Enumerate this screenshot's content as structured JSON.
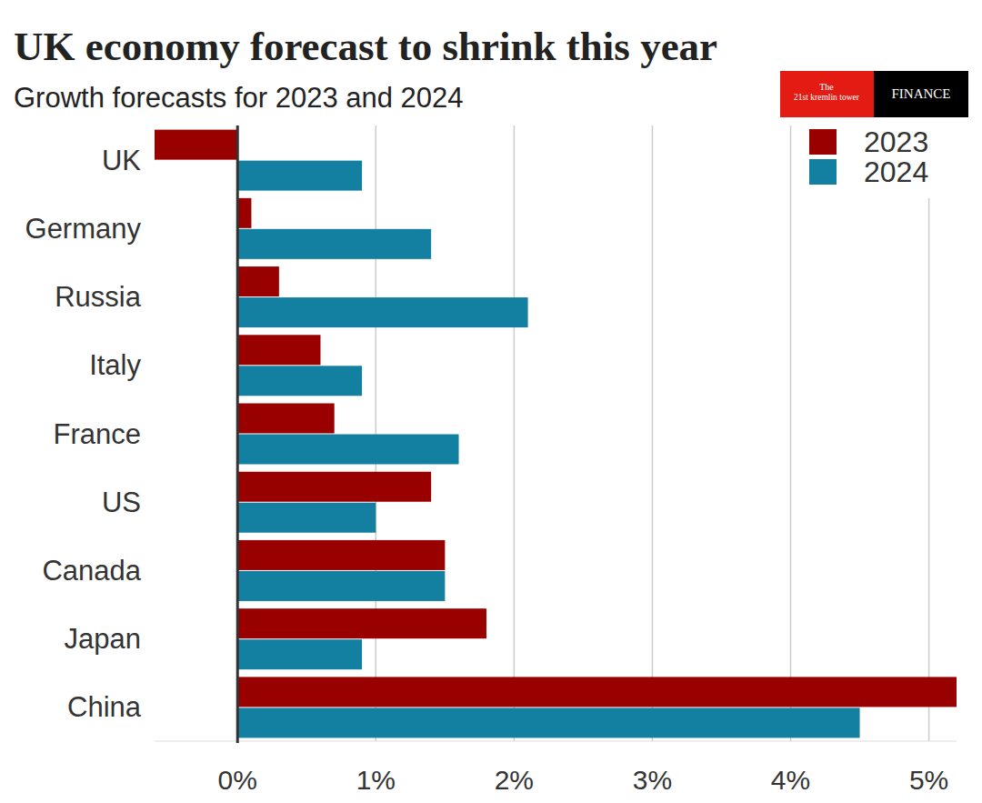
{
  "chart_data": {
    "type": "bar",
    "orientation": "horizontal",
    "title": "UK economy forecast to shrink this year",
    "subtitle": "Growth forecasts for 2023 and 2024",
    "annotations": [
      "The",
      "21st kremlin tower",
      "FINANCE"
    ],
    "categories": [
      "UK",
      "Germany",
      "Russia",
      "Italy",
      "France",
      "US",
      "Canada",
      "Japan",
      "China"
    ],
    "series": [
      {
        "name": "2023",
        "color": "#990000",
        "values": [
          -0.6,
          0.1,
          0.3,
          0.6,
          0.7,
          1.4,
          1.5,
          1.8,
          5.2
        ]
      },
      {
        "name": "2024",
        "color": "#1380a1",
        "values": [
          0.9,
          1.4,
          2.1,
          0.9,
          1.6,
          1.0,
          1.5,
          0.9,
          4.5
        ]
      }
    ],
    "xlim": [
      -0.6,
      5.2
    ],
    "xticks": [
      {
        "value": 0,
        "label": "0%"
      },
      {
        "value": 1,
        "label": "1%"
      },
      {
        "value": 2,
        "label": "2%"
      },
      {
        "value": 3,
        "label": "3%"
      },
      {
        "value": 4,
        "label": "4%"
      },
      {
        "value": 5,
        "label": "5%"
      }
    ],
    "grid": true,
    "legend": "top-right"
  }
}
